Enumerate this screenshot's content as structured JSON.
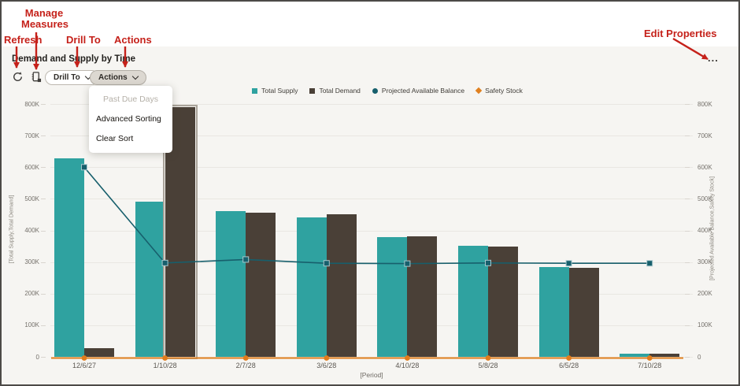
{
  "annotations": {
    "refresh": "Refresh",
    "manage_measures_line1": "Manage",
    "manage_measures_line2": "Measures",
    "drill_to": "Drill To",
    "actions": "Actions",
    "edit_properties": "Edit Properties",
    "color": "#c5211a"
  },
  "header": {
    "title": "Demand and Supply by Time",
    "drill_to_button": "Drill To",
    "actions_button": "Actions",
    "more": "..."
  },
  "menu": {
    "items": [
      {
        "label": "Past Due Days",
        "disabled": true
      },
      {
        "label": "Advanced Sorting",
        "disabled": false
      },
      {
        "label": "Clear Sort",
        "disabled": false
      }
    ]
  },
  "chart_data": {
    "type": "combo: bar + line",
    "categories": [
      "12/6/27",
      "1/10/28",
      "2/7/28",
      "3/6/28",
      "4/10/28",
      "5/8/28",
      "6/5/28",
      "7/10/28"
    ],
    "series": [
      {
        "name": "Total Supply",
        "type": "bar",
        "marker": "square",
        "color": "#2FA2A0",
        "values": [
          628000,
          491000,
          462000,
          440000,
          380000,
          351000,
          284000,
          11000
        ]
      },
      {
        "name": "Total Demand",
        "type": "bar",
        "marker": "square",
        "color": "#4A4037",
        "values": [
          27000,
          791000,
          455000,
          452000,
          382000,
          350000,
          282000,
          9000
        ]
      },
      {
        "name": "Projected Available Balance",
        "type": "line",
        "marker": "circle",
        "color": "#175F6C",
        "values": [
          600000,
          297000,
          308000,
          296000,
          295000,
          297000,
          296000,
          296000
        ]
      },
      {
        "name": "Safety Stock",
        "type": "line",
        "marker": "diamond",
        "color": "#E0801F",
        "values": [
          0,
          0,
          0,
          0,
          0,
          0,
          0,
          0
        ]
      }
    ],
    "y_ticks": [
      "0",
      "100K",
      "200K",
      "300K",
      "400K",
      "500K",
      "600K",
      "700K",
      "800K"
    ],
    "ylim": [
      0,
      800000
    ],
    "y_left_label": "[Total Supply,Total Demand]",
    "y_right_label": "[Projected Available Balance,Safety Stock]",
    "x_label": "[Period]",
    "grid": "horizontal",
    "legend_position": "top-center",
    "highlight": {
      "series": "Total Demand",
      "category": "1/10/28"
    }
  }
}
